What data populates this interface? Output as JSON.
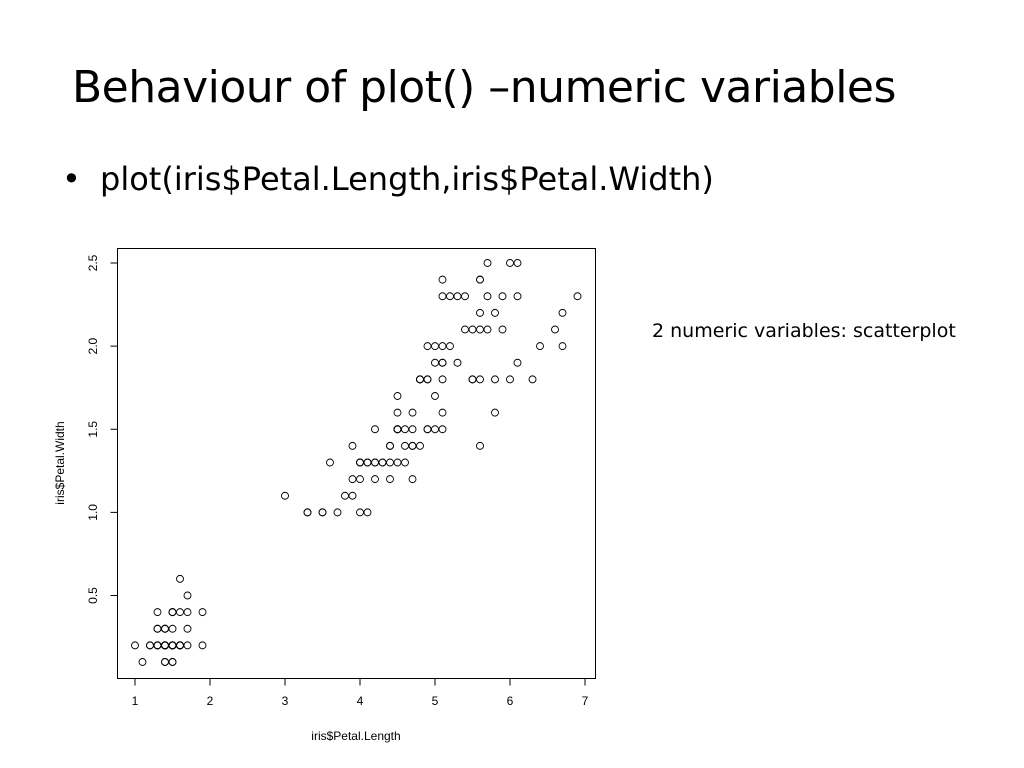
{
  "slide": {
    "title": "Behaviour of plot() –numeric variables",
    "bullet_symbol": "•",
    "bullet_text": "plot(iris$Petal.Length,iris$Petal.Width)",
    "side_note": "2 numeric variables: scatterplot"
  },
  "chart_data": {
    "type": "scatter",
    "title": "",
    "xlabel": "iris$Petal.Length",
    "ylabel": "iris$Petal.Width",
    "xlim": [
      1,
      7
    ],
    "ylim": [
      0.1,
      2.5
    ],
    "xticks": [
      1,
      2,
      3,
      4,
      5,
      6,
      7
    ],
    "yticks": [
      0.5,
      1.0,
      1.5,
      2.0,
      2.5
    ],
    "ytick_labels": [
      "0.5",
      "1.0",
      "1.5",
      "2.0",
      "2.5"
    ],
    "grid": false,
    "marker": "open-circle",
    "points": [
      [
        1.4,
        0.2
      ],
      [
        1.4,
        0.2
      ],
      [
        1.3,
        0.2
      ],
      [
        1.5,
        0.2
      ],
      [
        1.4,
        0.2
      ],
      [
        1.7,
        0.4
      ],
      [
        1.4,
        0.3
      ],
      [
        1.5,
        0.2
      ],
      [
        1.4,
        0.2
      ],
      [
        1.5,
        0.1
      ],
      [
        1.5,
        0.2
      ],
      [
        1.6,
        0.2
      ],
      [
        1.4,
        0.1
      ],
      [
        1.1,
        0.1
      ],
      [
        1.2,
        0.2
      ],
      [
        1.5,
        0.4
      ],
      [
        1.3,
        0.4
      ],
      [
        1.4,
        0.3
      ],
      [
        1.7,
        0.3
      ],
      [
        1.5,
        0.3
      ],
      [
        1.7,
        0.2
      ],
      [
        1.5,
        0.4
      ],
      [
        1.0,
        0.2
      ],
      [
        1.7,
        0.5
      ],
      [
        1.9,
        0.2
      ],
      [
        1.6,
        0.2
      ],
      [
        1.6,
        0.4
      ],
      [
        1.5,
        0.2
      ],
      [
        1.4,
        0.2
      ],
      [
        1.6,
        0.2
      ],
      [
        1.6,
        0.2
      ],
      [
        1.5,
        0.4
      ],
      [
        1.5,
        0.1
      ],
      [
        1.4,
        0.2
      ],
      [
        1.5,
        0.2
      ],
      [
        1.2,
        0.2
      ],
      [
        1.3,
        0.2
      ],
      [
        1.4,
        0.1
      ],
      [
        1.3,
        0.2
      ],
      [
        1.5,
        0.2
      ],
      [
        1.3,
        0.3
      ],
      [
        1.3,
        0.3
      ],
      [
        1.3,
        0.2
      ],
      [
        1.6,
        0.6
      ],
      [
        1.9,
        0.4
      ],
      [
        1.4,
        0.3
      ],
      [
        1.6,
        0.2
      ],
      [
        1.4,
        0.2
      ],
      [
        1.5,
        0.2
      ],
      [
        1.4,
        0.2
      ],
      [
        4.7,
        1.4
      ],
      [
        4.5,
        1.5
      ],
      [
        4.9,
        1.5
      ],
      [
        4.0,
        1.3
      ],
      [
        4.6,
        1.5
      ],
      [
        4.5,
        1.3
      ],
      [
        4.7,
        1.6
      ],
      [
        3.3,
        1.0
      ],
      [
        4.6,
        1.3
      ],
      [
        3.9,
        1.4
      ],
      [
        3.5,
        1.0
      ],
      [
        4.2,
        1.5
      ],
      [
        4.0,
        1.0
      ],
      [
        4.7,
        1.4
      ],
      [
        3.6,
        1.3
      ],
      [
        4.4,
        1.4
      ],
      [
        4.5,
        1.5
      ],
      [
        4.1,
        1.0
      ],
      [
        4.5,
        1.5
      ],
      [
        3.9,
        1.1
      ],
      [
        4.8,
        1.8
      ],
      [
        4.0,
        1.3
      ],
      [
        4.9,
        1.5
      ],
      [
        4.7,
        1.2
      ],
      [
        4.3,
        1.3
      ],
      [
        4.4,
        1.4
      ],
      [
        4.8,
        1.4
      ],
      [
        5.0,
        1.7
      ],
      [
        4.5,
        1.5
      ],
      [
        3.5,
        1.0
      ],
      [
        3.8,
        1.1
      ],
      [
        3.7,
        1.0
      ],
      [
        3.9,
        1.2
      ],
      [
        5.1,
        1.6
      ],
      [
        4.5,
        1.5
      ],
      [
        4.5,
        1.6
      ],
      [
        4.7,
        1.5
      ],
      [
        4.4,
        1.3
      ],
      [
        4.1,
        1.3
      ],
      [
        4.0,
        1.3
      ],
      [
        4.4,
        1.2
      ],
      [
        4.6,
        1.4
      ],
      [
        4.0,
        1.2
      ],
      [
        3.3,
        1.0
      ],
      [
        4.2,
        1.3
      ],
      [
        4.2,
        1.2
      ],
      [
        4.2,
        1.3
      ],
      [
        4.3,
        1.3
      ],
      [
        3.0,
        1.1
      ],
      [
        4.1,
        1.3
      ],
      [
        6.0,
        2.5
      ],
      [
        5.1,
        1.9
      ],
      [
        5.9,
        2.1
      ],
      [
        5.6,
        1.8
      ],
      [
        5.8,
        2.2
      ],
      [
        6.6,
        2.1
      ],
      [
        4.5,
        1.7
      ],
      [
        6.3,
        1.8
      ],
      [
        5.8,
        1.8
      ],
      [
        6.1,
        2.5
      ],
      [
        5.1,
        2.0
      ],
      [
        5.3,
        1.9
      ],
      [
        5.5,
        2.1
      ],
      [
        5.0,
        2.0
      ],
      [
        5.1,
        2.4
      ],
      [
        5.3,
        2.3
      ],
      [
        5.5,
        1.8
      ],
      [
        6.7,
        2.2
      ],
      [
        6.9,
        2.3
      ],
      [
        5.0,
        1.5
      ],
      [
        5.7,
        2.3
      ],
      [
        4.9,
        2.0
      ],
      [
        6.7,
        2.0
      ],
      [
        4.9,
        1.8
      ],
      [
        5.7,
        2.1
      ],
      [
        6.0,
        1.8
      ],
      [
        4.8,
        1.8
      ],
      [
        4.9,
        1.8
      ],
      [
        5.6,
        2.1
      ],
      [
        5.8,
        1.6
      ],
      [
        6.1,
        1.9
      ],
      [
        6.4,
        2.0
      ],
      [
        5.6,
        2.2
      ],
      [
        5.1,
        1.5
      ],
      [
        5.6,
        1.4
      ],
      [
        6.1,
        2.3
      ],
      [
        5.6,
        2.4
      ],
      [
        5.5,
        1.8
      ],
      [
        4.8,
        1.8
      ],
      [
        5.4,
        2.1
      ],
      [
        5.6,
        2.4
      ],
      [
        5.1,
        2.3
      ],
      [
        5.1,
        1.9
      ],
      [
        5.9,
        2.3
      ],
      [
        5.7,
        2.5
      ],
      [
        5.2,
        2.3
      ],
      [
        5.0,
        1.9
      ],
      [
        5.2,
        2.0
      ],
      [
        5.4,
        2.3
      ],
      [
        5.1,
        1.8
      ]
    ]
  }
}
